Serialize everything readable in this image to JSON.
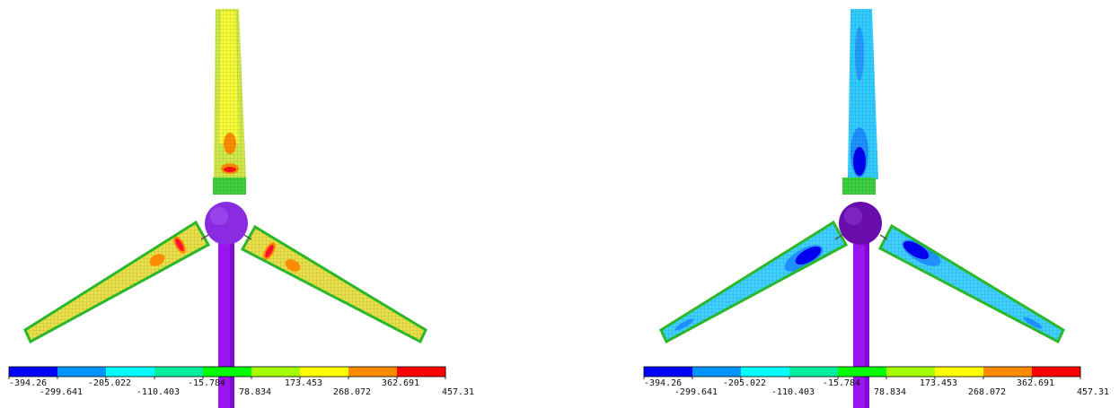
{
  "colorbar": {
    "colors": [
      "#0000ff",
      "#0094ff",
      "#00ffff",
      "#00f0a0",
      "#00ff00",
      "#a6ff00",
      "#ffff00",
      "#ff8c00",
      "#ff0000"
    ],
    "ticks": [
      "-394.26",
      "-299.641",
      "-205.022",
      "-110.403",
      "-15.784",
      "78.834",
      "173.453",
      "268.072",
      "362.691",
      "457.31"
    ]
  },
  "panels": [
    {
      "name": "left-panel",
      "blade_fill": "#e8e04a",
      "hub_color": "#8a2be2",
      "tower_color": "#9a14f0"
    },
    {
      "name": "right-panel",
      "blade_fill": "#33ccff",
      "hub_color": "#6a0dad",
      "tower_color": "#9a14f0"
    }
  ]
}
